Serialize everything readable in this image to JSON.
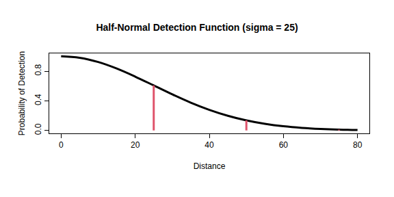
{
  "chart_data": {
    "type": "line",
    "title": "Half-Normal Detection Function (sigma = 25)",
    "x_label": "Distance",
    "y_label": "Probability of Detection",
    "xlim": [
      -3.2,
      83.2
    ],
    "ylim": [
      -0.04,
      1.04
    ],
    "xticks": [
      0,
      20,
      40,
      60,
      80
    ],
    "yticks": [
      {
        "value": 0,
        "label": "0.0"
      },
      0.4,
      0.8
    ],
    "grid": false,
    "series": [
      {
        "type": "line",
        "color": "#000000",
        "x": [
          0,
          5,
          10,
          15,
          20,
          25,
          30,
          35,
          40,
          45,
          50,
          55,
          60,
          65,
          70,
          75,
          80
        ],
        "values": [
          1.0,
          0.98,
          0.923,
          0.835,
          0.726,
          0.607,
          0.487,
          0.375,
          0.278,
          0.198,
          0.135,
          0.089,
          0.056,
          0.034,
          0.02,
          0.011,
          0.006
        ]
      },
      {
        "type": "spike",
        "color": "#DF536B",
        "x": [
          25,
          50,
          75
        ],
        "values": [
          0.607,
          0.135,
          0.011
        ]
      }
    ]
  }
}
